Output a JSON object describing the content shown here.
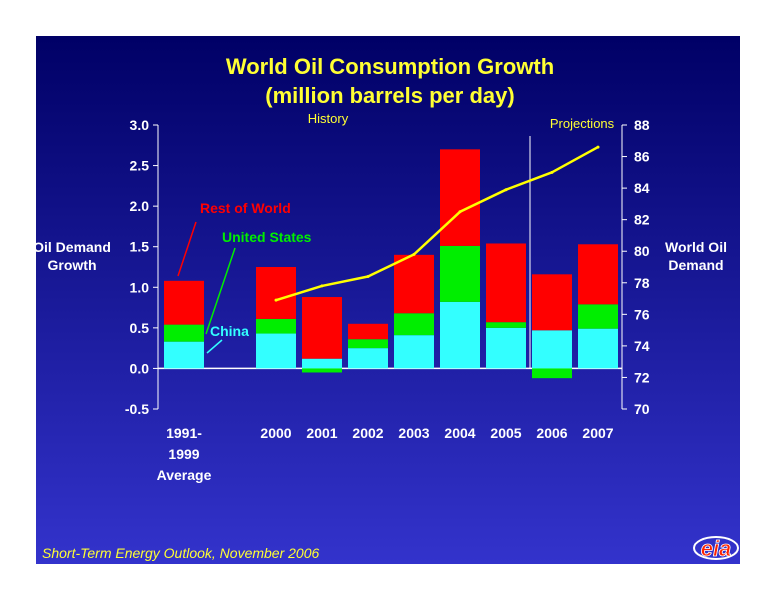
{
  "chart_data": {
    "type": "bar",
    "title": "World Oil Consumption Growth",
    "subtitle": "(million barrels per day)",
    "categories": [
      [
        "1991-",
        "1999",
        "Average"
      ],
      [
        "2000"
      ],
      [
        "2001"
      ],
      [
        "2002"
      ],
      [
        "2003"
      ],
      [
        "2004"
      ],
      [
        "2005"
      ],
      [
        "2006"
      ],
      [
        "2007"
      ]
    ],
    "stacked": true,
    "series": [
      {
        "name": "China",
        "color": "#33ffff",
        "values": [
          0.33,
          0.43,
          0.12,
          0.25,
          0.41,
          0.82,
          0.5,
          0.47,
          0.49
        ]
      },
      {
        "name": "United States",
        "color": "#00ee00",
        "values": [
          0.21,
          0.18,
          -0.05,
          0.11,
          0.27,
          0.69,
          0.07,
          -0.12,
          0.3
        ]
      },
      {
        "name": "Rest of World",
        "color": "#ff0000",
        "values": [
          0.54,
          0.64,
          0.76,
          0.19,
          0.72,
          1.19,
          0.97,
          0.69,
          0.74
        ]
      }
    ],
    "line": {
      "name": "World Oil Demand",
      "color": "#ffff00",
      "categories": [
        "2000",
        "2001",
        "2002",
        "2003",
        "2004",
        "2005",
        "2006",
        "2007"
      ],
      "values": [
        76.9,
        77.8,
        78.4,
        79.8,
        82.5,
        83.9,
        85.0,
        86.6
      ]
    },
    "ylabel": [
      "Oil Demand",
      "Growth"
    ],
    "y2label": [
      "World Oil",
      "Demand"
    ],
    "ylim": [
      -0.5,
      3.0
    ],
    "yticks": [
      "3.0",
      "2.5",
      "2.0",
      "1.5",
      "1.0",
      "0.5",
      "0.0",
      "-0.5"
    ],
    "y2lim": [
      70,
      88
    ],
    "y2ticks": [
      "88",
      "86",
      "84",
      "82",
      "80",
      "78",
      "76",
      "74",
      "72",
      "70"
    ],
    "annotations": {
      "history": "History",
      "projections": "Projections"
    },
    "source": "Short-Term Energy Outlook, November 2006",
    "logo_text": "eia",
    "colors": {
      "background_top": "#000066",
      "background_bottom": "#3333cc",
      "title": "#ffff33"
    }
  }
}
